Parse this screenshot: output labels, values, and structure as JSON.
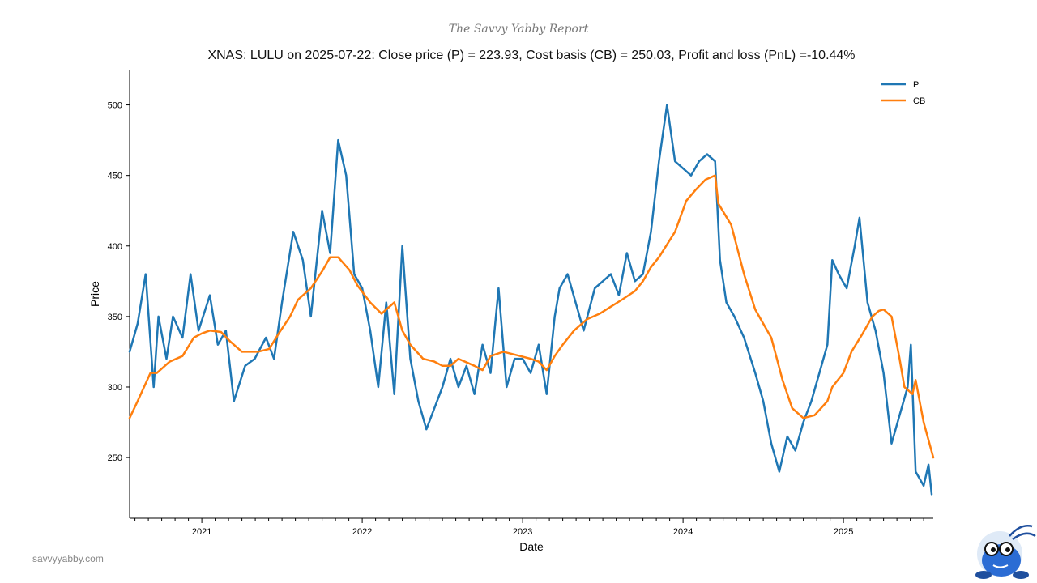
{
  "header": {
    "brand": "The Savvy Yabby Report"
  },
  "footer": {
    "website": "savvyyabby.com",
    "mascot_icon": "yabby-mascot-icon"
  },
  "chart_data": {
    "type": "line",
    "title": "XNAS: LULU on 2025-07-22: Close price (P) = 223.93, Cost basis (CB) = 250.03, Profit and loss (PnL) =-10.44%",
    "xlabel": "Date",
    "ylabel": "Price",
    "x_range": [
      2020.55,
      2025.56
    ],
    "ylim": [
      207,
      525
    ],
    "y_ticks": [
      250,
      300,
      350,
      400,
      450,
      500
    ],
    "x_ticks": [
      {
        "label": "2021",
        "value": 2021.0
      },
      {
        "label": "2022",
        "value": 2022.0
      },
      {
        "label": "2023",
        "value": 2023.0
      },
      {
        "label": "2024",
        "value": 2024.0
      },
      {
        "label": "2025",
        "value": 2025.0
      }
    ],
    "grid": false,
    "legend": {
      "position": "top-right",
      "entries": [
        "P",
        "CB"
      ]
    },
    "series": [
      {
        "name": "P",
        "color": "#1f77b4",
        "x": [
          2020.55,
          2020.6,
          2020.65,
          2020.7,
          2020.73,
          2020.78,
          2020.82,
          2020.88,
          2020.93,
          2020.98,
          2021.05,
          2021.1,
          2021.15,
          2021.2,
          2021.27,
          2021.33,
          2021.4,
          2021.45,
          2021.5,
          2021.57,
          2021.63,
          2021.68,
          2021.75,
          2021.8,
          2021.85,
          2021.9,
          2021.95,
          2022.0,
          2022.05,
          2022.1,
          2022.15,
          2022.2,
          2022.25,
          2022.3,
          2022.35,
          2022.4,
          2022.45,
          2022.5,
          2022.55,
          2022.6,
          2022.65,
          2022.7,
          2022.75,
          2022.8,
          2022.85,
          2022.9,
          2022.95,
          2023.0,
          2023.05,
          2023.1,
          2023.15,
          2023.2,
          2023.23,
          2023.28,
          2023.33,
          2023.38,
          2023.45,
          2023.5,
          2023.55,
          2023.6,
          2023.65,
          2023.7,
          2023.75,
          2023.8,
          2023.85,
          2023.9,
          2023.95,
          2024.0,
          2024.05,
          2024.1,
          2024.15,
          2024.2,
          2024.23,
          2024.27,
          2024.32,
          2024.38,
          2024.45,
          2024.5,
          2024.55,
          2024.6,
          2024.65,
          2024.7,
          2024.75,
          2024.8,
          2024.85,
          2024.9,
          2024.93,
          2024.97,
          2025.02,
          2025.07,
          2025.1,
          2025.15,
          2025.2,
          2025.25,
          2025.3,
          2025.35,
          2025.4,
          2025.42,
          2025.45,
          2025.5,
          2025.53,
          2025.55
        ],
        "y": [
          325,
          345,
          380,
          300,
          350,
          320,
          350,
          335,
          380,
          340,
          365,
          330,
          340,
          290,
          315,
          320,
          335,
          320,
          360,
          410,
          390,
          350,
          425,
          395,
          475,
          450,
          380,
          370,
          340,
          300,
          360,
          295,
          400,
          320,
          290,
          270,
          285,
          300,
          320,
          300,
          315,
          295,
          330,
          310,
          370,
          300,
          320,
          320,
          310,
          330,
          295,
          350,
          370,
          380,
          360,
          340,
          370,
          375,
          380,
          365,
          395,
          375,
          380,
          410,
          460,
          500,
          460,
          455,
          450,
          460,
          465,
          460,
          390,
          360,
          350,
          335,
          310,
          290,
          260,
          240,
          265,
          255,
          275,
          290,
          310,
          330,
          390,
          380,
          370,
          400,
          420,
          360,
          340,
          310,
          260,
          280,
          300,
          330,
          240,
          230,
          245,
          224
        ],
        "last_value": 223.93
      },
      {
        "name": "CB",
        "color": "#ff7f0e",
        "x": [
          2020.55,
          2020.6,
          2020.68,
          2020.72,
          2020.8,
          2020.88,
          2020.95,
          2021.0,
          2021.05,
          2021.12,
          2021.18,
          2021.25,
          2021.3,
          2021.35,
          2021.42,
          2021.48,
          2021.55,
          2021.6,
          2021.68,
          2021.75,
          2021.8,
          2021.85,
          2021.92,
          2021.97,
          2022.05,
          2022.12,
          2022.2,
          2022.25,
          2022.3,
          2022.38,
          2022.45,
          2022.5,
          2022.55,
          2022.6,
          2022.7,
          2022.75,
          2022.8,
          2022.88,
          2022.95,
          2023.05,
          2023.1,
          2023.15,
          2023.2,
          2023.25,
          2023.32,
          2023.4,
          2023.48,
          2023.55,
          2023.62,
          2023.7,
          2023.75,
          2023.8,
          2023.85,
          2023.95,
          2024.02,
          2024.08,
          2024.14,
          2024.2,
          2024.22,
          2024.3,
          2024.38,
          2024.45,
          2024.5,
          2024.55,
          2024.62,
          2024.68,
          2024.75,
          2024.82,
          2024.9,
          2024.93,
          2025.0,
          2025.05,
          2025.12,
          2025.18,
          2025.22,
          2025.25,
          2025.3,
          2025.35,
          2025.38,
          2025.43,
          2025.45,
          2025.5,
          2025.56
        ],
        "y": [
          278,
          290,
          310,
          310,
          318,
          322,
          335,
          338,
          340,
          339,
          332,
          325,
          325,
          325,
          327,
          338,
          350,
          362,
          370,
          382,
          392,
          392,
          383,
          372,
          360,
          352,
          360,
          340,
          330,
          320,
          318,
          315,
          315,
          320,
          315,
          312,
          322,
          325,
          323,
          320,
          318,
          312,
          322,
          330,
          340,
          348,
          352,
          357,
          362,
          368,
          375,
          385,
          392,
          410,
          432,
          440,
          447,
          450,
          430,
          415,
          380,
          355,
          345,
          335,
          305,
          285,
          278,
          280,
          290,
          300,
          310,
          325,
          338,
          350,
          354,
          355,
          350,
          320,
          300,
          295,
          305,
          275,
          250
        ],
        "last_value": 250.03
      }
    ]
  }
}
